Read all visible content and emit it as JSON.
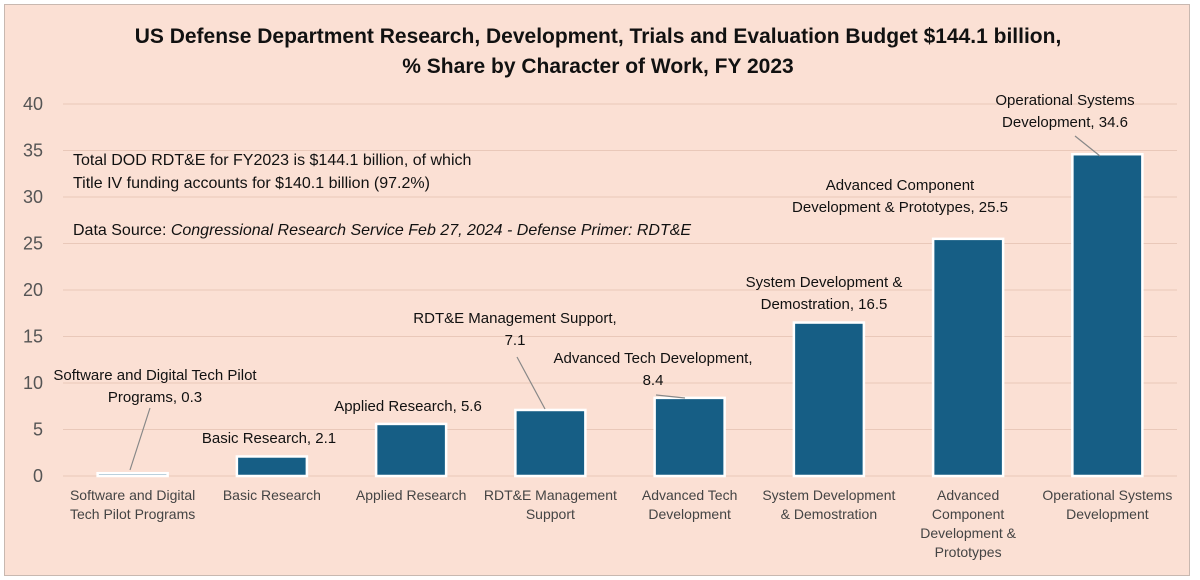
{
  "chart_data": {
    "type": "bar",
    "title_lines": [
      "US Defense Department Research, Development, Trials and Evaluation Budget $144.1 billion,",
      "% Share by Character of Work, FY 2023"
    ],
    "ylim": [
      0,
      40
    ],
    "yticks": [
      0,
      5,
      10,
      15,
      20,
      25,
      30,
      35,
      40
    ],
    "grid": true,
    "categories": [
      [
        "Software and Digital",
        "Tech Pilot Programs"
      ],
      [
        "Basic Research"
      ],
      [
        "Applied Research"
      ],
      [
        "RDT&E Management",
        "Support"
      ],
      [
        "Advanced Tech",
        "Development"
      ],
      [
        "System Development",
        "& Demostration"
      ],
      [
        "Advanced",
        "Component",
        "Development &",
        "Prototypes"
      ],
      [
        "Operational Systems",
        "Development"
      ]
    ],
    "values": [
      0.3,
      2.1,
      5.6,
      7.1,
      8.4,
      16.5,
      25.5,
      34.6
    ],
    "data_labels": [
      [
        "Software and Digital Tech Pilot",
        "Programs, 0.3"
      ],
      [
        "Basic Research, 2.1"
      ],
      [
        "Applied Research, 5.6"
      ],
      [
        "RDT&E Management Support,",
        "7.1"
      ],
      [
        "Advanced Tech Development,",
        "8.4"
      ],
      [
        "System Development &",
        "Demostration, 16.5"
      ],
      [
        "Advanced Component",
        "Development & Prototypes, 25.5"
      ],
      [
        "Operational Systems",
        "Development, 34.6"
      ]
    ],
    "bar_color": "#165e85",
    "background_color": "#fbe0d4",
    "annotations": {
      "total_line1": "Total DOD RDT&E for FY2023 is $144.1 billion, of which",
      "total_line2": "Title IV funding accounts for $140.1 billion (97.2%)",
      "source_prefix": "Data Source: ",
      "source_text": "Congressional Research Service Feb 27, 2024 - Defense Primer: RDT&E"
    }
  }
}
